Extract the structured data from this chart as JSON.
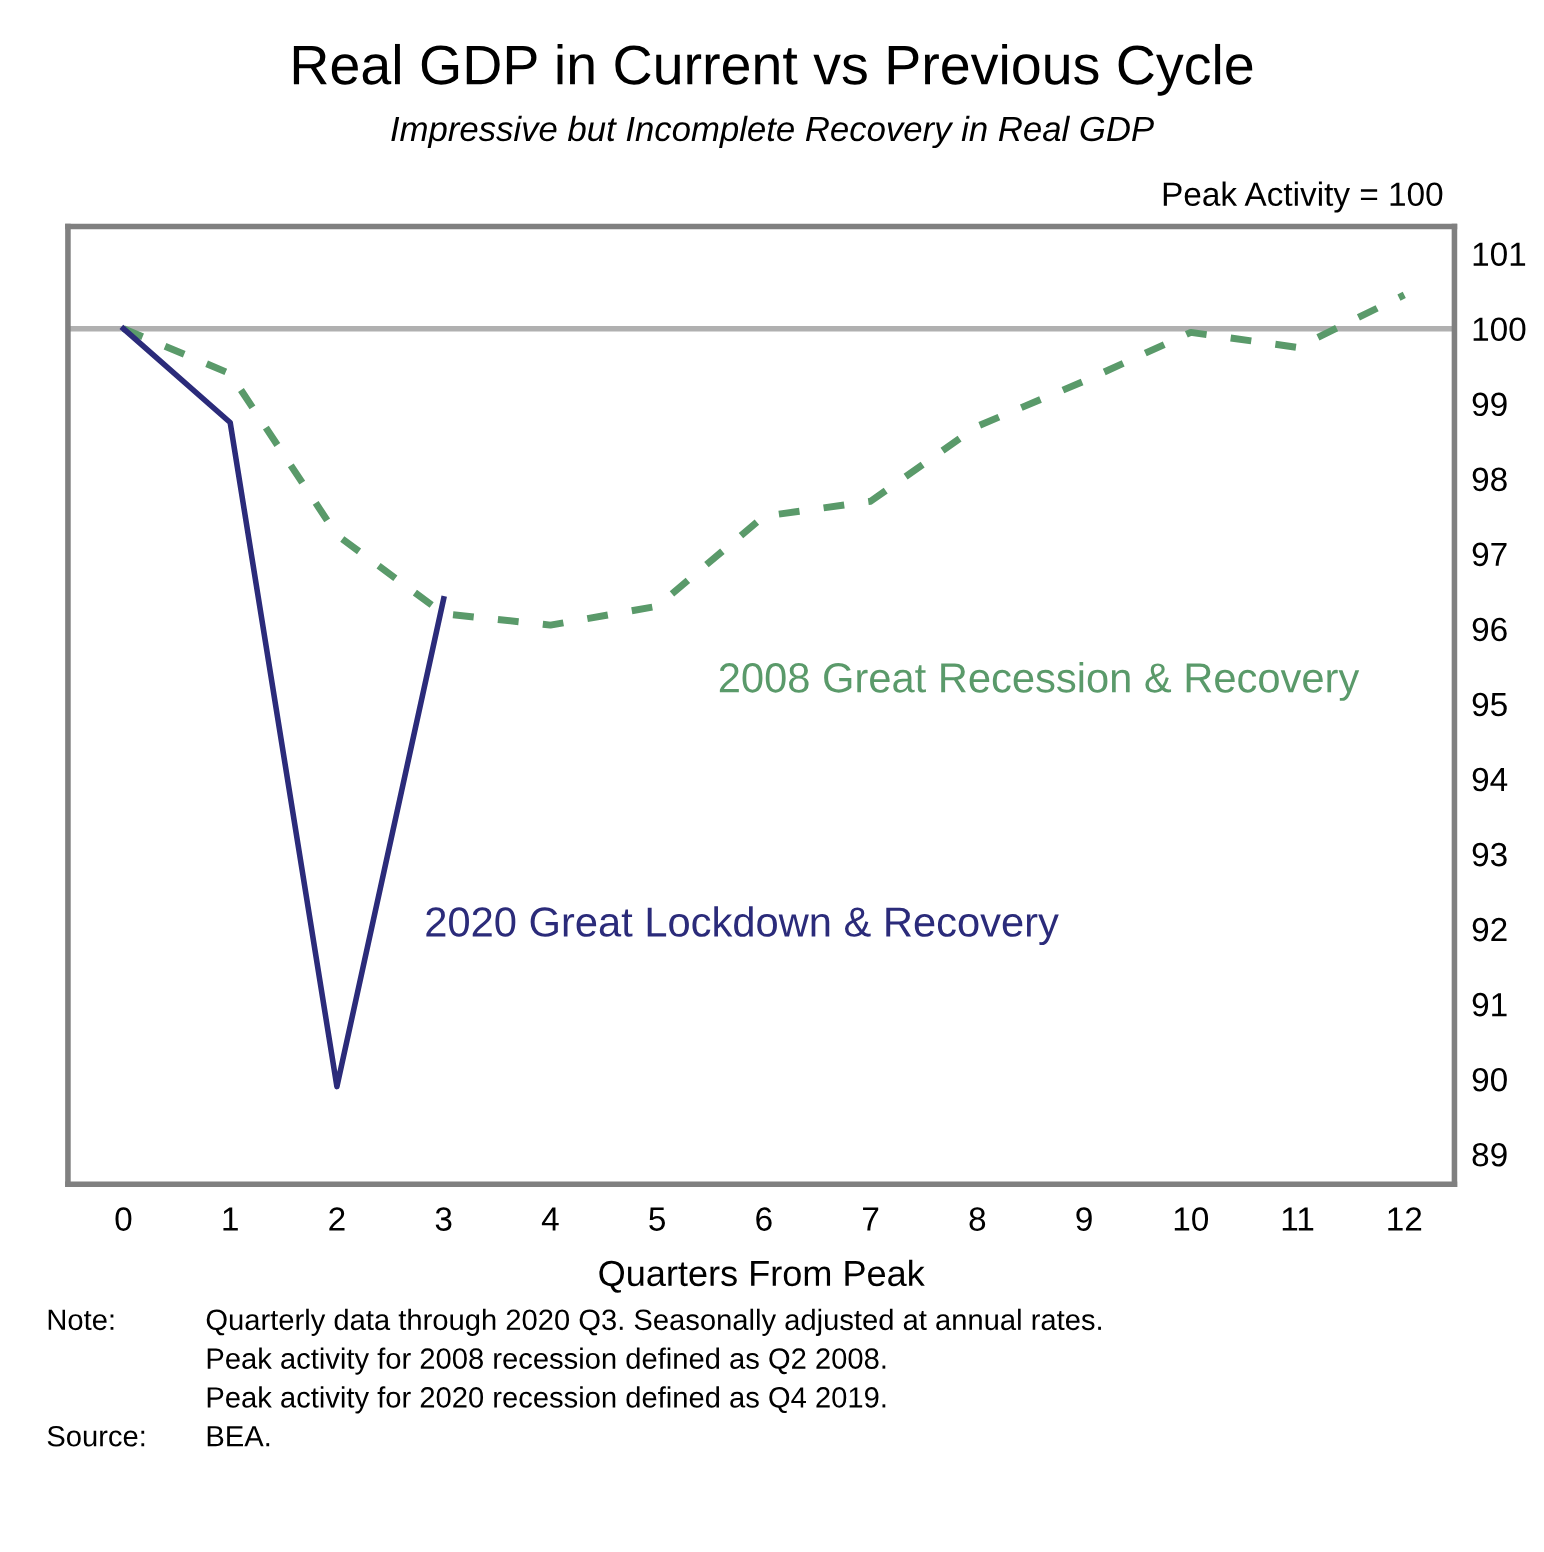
{
  "chart_data": {
    "type": "line",
    "title": "Real GDP in Current vs Previous Cycle",
    "subtitle": "Impressive but Incomplete Recovery in Real GDP",
    "xlabel": "Quarters From Peak",
    "x": [
      0,
      1,
      2,
      3,
      4,
      5,
      6,
      7,
      8,
      9,
      10,
      11,
      12
    ],
    "series": [
      {
        "name": "2008 Great Recession & Recovery",
        "color": "#5a9a6a",
        "line_style": "dashed",
        "values": [
          100,
          99.4,
          97.25,
          96.2,
          96.05,
          96.3,
          97.5,
          97.7,
          98.7,
          99.3,
          99.95,
          99.75,
          100.45
        ]
      },
      {
        "name": "2020 Great Lockdown & Recovery",
        "color": "#2b2b7a",
        "line_style": "solid",
        "x": [
          0,
          1,
          2,
          3
        ],
        "values": [
          100,
          98.75,
          89.9,
          96.4
        ]
      }
    ],
    "xlim": [
      -0.52,
      12.47
    ],
    "ylim": [
      88.6,
      101.36
    ],
    "xticks": [
      0,
      1,
      2,
      3,
      4,
      5,
      6,
      7,
      8,
      9,
      10,
      11,
      12
    ],
    "yticks": [
      89,
      90,
      91,
      92,
      93,
      94,
      95,
      96,
      97,
      98,
      99,
      100,
      101
    ],
    "ylabel": "Peak Activity = 100",
    "ref_lines": [
      {
        "axis": "y",
        "value": 100,
        "color": "#b0b0b0"
      }
    ],
    "grid": false,
    "legend": false,
    "marker": "none",
    "annotations": [
      "Note:\tQuarterly data through 2020 Q3. Seasonally adjusted at annual rates.",
      "\tPeak activity for 2008 recession defined as Q2 2008.",
      "\tPeak activity for 2020 recession defined as Q4 2019.",
      "Source:\tBEA."
    ]
  }
}
